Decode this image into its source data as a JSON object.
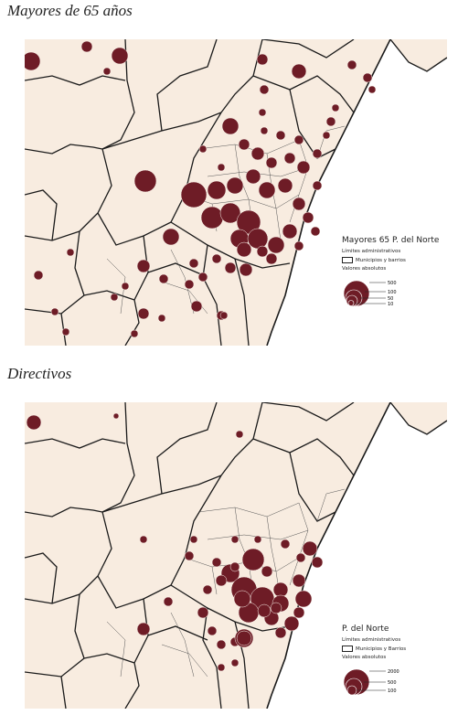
{
  "sections": [
    {
      "title": "Mayores de 65 años",
      "legend": {
        "title": "Mayores 65 P. del Norte",
        "admin_label": "Límites administrativos",
        "boundary_label": "Municipios y barrios",
        "values_label": "Valores absolutos",
        "scale_values": [
          "500",
          "100",
          "50",
          "10"
        ]
      },
      "colors": {
        "land": "#f8ece0",
        "sea": "#ffffff",
        "bubble": "#6e1c26",
        "boundary": "#1a1a1a"
      }
    },
    {
      "title": "Directivos",
      "legend": {
        "title": "P. del Norte",
        "admin_label": "Límites administrativos",
        "boundary_label": "Municipios y Barrios",
        "values_label": "Valores absolutos",
        "scale_values": [
          "2000",
          "500",
          "100"
        ]
      },
      "colors": {
        "land": "#f8ece0",
        "sea": "#ffffff",
        "bubble": "#6e1c26",
        "boundary": "#1a1a1a"
      }
    }
  ]
}
